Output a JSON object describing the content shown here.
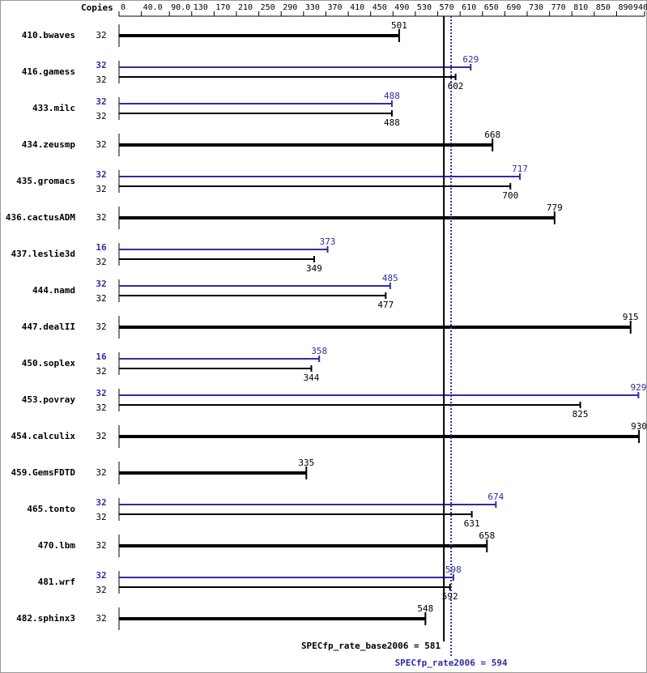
{
  "chart_data": {
    "type": "bar",
    "orientation": "horizontal",
    "copies_label": "Copies",
    "xlim": [
      0,
      940
    ],
    "xticks": [
      0,
      {
        "value": 40,
        "label": "40.0"
      },
      {
        "value": 90,
        "label": "90.0"
      },
      130,
      170,
      210,
      250,
      290,
      330,
      370,
      410,
      450,
      490,
      530,
      570,
      610,
      650,
      690,
      730,
      770,
      810,
      850,
      890,
      940
    ],
    "categories": [
      "410.bwaves",
      "416.gamess",
      "433.milc",
      "434.zeusmp",
      "435.gromacs",
      "436.cactusADM",
      "437.leslie3d",
      "444.namd",
      "447.dealII",
      "450.soplex",
      "453.povray",
      "454.calculix",
      "459.GemsFDTD",
      "465.tonto",
      "470.lbm",
      "481.wrf",
      "482.sphinx3"
    ],
    "series": [
      {
        "color": "#000000",
        "copies": [
          32,
          32,
          32,
          32,
          32,
          32,
          32,
          32,
          32,
          32,
          32,
          32,
          32,
          32,
          32,
          32,
          32
        ],
        "values": [
          501,
          602,
          488,
          668,
          700,
          779,
          349,
          477,
          915,
          344,
          825,
          930,
          335,
          631,
          658,
          592,
          548
        ]
      },
      {
        "color": "#2e2e9e",
        "copies": [
          null,
          32,
          32,
          null,
          32,
          null,
          16,
          32,
          null,
          16,
          32,
          null,
          null,
          32,
          null,
          32,
          null
        ],
        "values": [
          null,
          629,
          488,
          null,
          717,
          null,
          373,
          485,
          null,
          358,
          929,
          null,
          null,
          674,
          null,
          598,
          null
        ]
      }
    ],
    "reference_lines": [
      {
        "label": "SPECfp_rate_base2006 = 581",
        "value": 581,
        "color": "#000000",
        "style": "solid"
      },
      {
        "label": "SPECfp_rate2006 = 594",
        "value": 594,
        "color": "#2e2e9e",
        "style": "dotted"
      }
    ]
  }
}
